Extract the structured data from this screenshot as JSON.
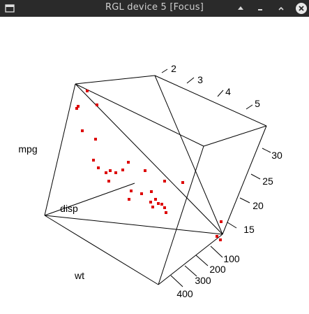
{
  "window": {
    "title": "RGL device 5 [Focus]",
    "titlebar_color": "#2a2a2a",
    "icons": [
      "window-menu-icon",
      "keep-above-icon",
      "minimize-icon",
      "maximize-icon",
      "close-icon"
    ]
  },
  "chart_data": {
    "type": "scatter",
    "dimensions": 3,
    "axes": {
      "x": {
        "label": "wt",
        "ticks": [
          "2",
          "3",
          "4",
          "5"
        ]
      },
      "y": {
        "label": "disp",
        "ticks": [
          "100",
          "200",
          "300",
          "400"
        ]
      },
      "z": {
        "label": "mpg",
        "ticks": [
          "15",
          "20",
          "25",
          "30"
        ]
      }
    },
    "point_color": "#dd0000",
    "bounding_box": true
  }
}
